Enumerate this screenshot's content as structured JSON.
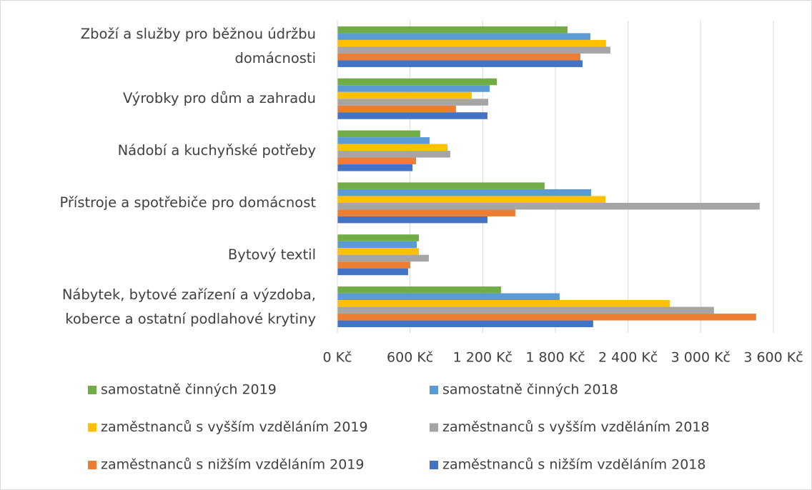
{
  "chart_data": {
    "type": "hbar",
    "categories": [
      "Zboží a služby pro běžnou údržbu\ndomácnosti",
      "Výrobky pro dům a zahradu",
      "Nádobí a kuchyňské potřeby",
      "Přístroje a spotřebiče pro domácnost",
      "Bytový textil",
      "Nábytek, bytové zařízení a výzdoba,\nkoberce a ostatní podlahové krytiny"
    ],
    "series": [
      {
        "name": "samostatně činných 2019",
        "color": "#70ad47",
        "values": [
          1900,
          1316,
          684,
          1711,
          673,
          1351
        ]
      },
      {
        "name": "samostatně činných 2018",
        "color": "#5b9bd5",
        "values": [
          2089,
          1257,
          761,
          2095,
          655,
          1835
        ]
      },
      {
        "name": "zaměstnanců s vyšším vzděláním 2019",
        "color": "#ffc000",
        "values": [
          2218,
          1109,
          909,
          2213,
          673,
          2744
        ]
      },
      {
        "name": "zaměstnanců s vyšším vzděláním 2018",
        "color": "#a5a5a5",
        "values": [
          2254,
          1245,
          932,
          3487,
          755,
          3109
        ]
      },
      {
        "name": "zaměstnanců s nižším vzděláním 2019",
        "color": "#ed7d31",
        "values": [
          2006,
          979,
          649,
          1469,
          602,
          3457
        ]
      },
      {
        "name": "zaměstnanců s nižším vzděláním 2018",
        "color": "#4472c4",
        "values": [
          2024,
          1239,
          620,
          1239,
          584,
          2112
        ]
      }
    ],
    "xlim": [
      0,
      3600
    ],
    "xticks": [
      {
        "value": 0,
        "label": "0 Kč"
      },
      {
        "value": 600,
        "label": "600 Kč"
      },
      {
        "value": 1200,
        "label": "1 200 Kč"
      },
      {
        "value": 1800,
        "label": "1 800 Kč"
      },
      {
        "value": 2400,
        "label": "2 400 Kč"
      },
      {
        "value": 3000,
        "label": "3 000 Kč"
      },
      {
        "value": 3600,
        "label": "3 600 Kč"
      }
    ],
    "grid": true,
    "legend": "bottom"
  }
}
